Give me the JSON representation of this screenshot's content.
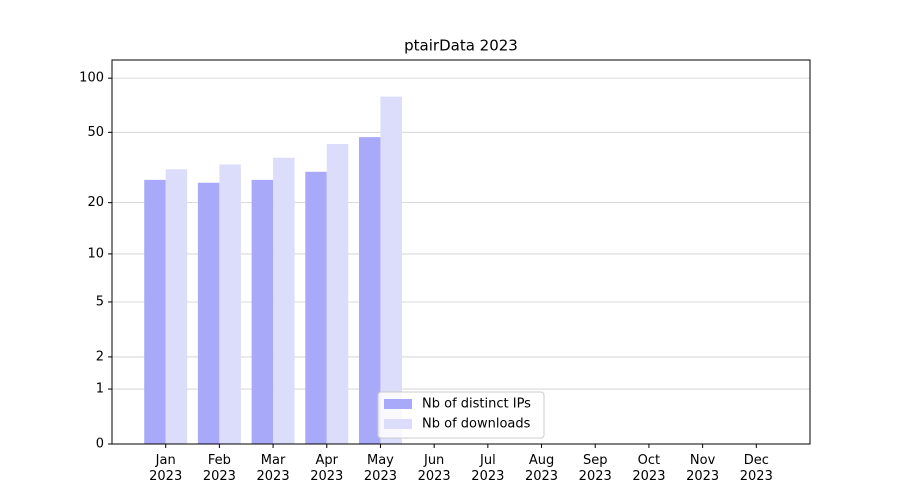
{
  "chart_data": {
    "type": "bar",
    "title": "ptairData 2023",
    "categories": [
      "Jan\n2023",
      "Feb\n2023",
      "Mar\n2023",
      "Apr\n2023",
      "May\n2023",
      "Jun\n2023",
      "Jul\n2023",
      "Aug\n2023",
      "Sep\n2023",
      "Oct\n2023",
      "Nov\n2023",
      "Dec\n2023"
    ],
    "series": [
      {
        "name": "Nb of distinct IPs",
        "color": "#a9a9f9",
        "values": [
          27,
          26,
          27,
          30,
          47,
          null,
          null,
          null,
          null,
          null,
          null,
          null
        ]
      },
      {
        "name": "Nb of downloads",
        "color": "#dcdcfb",
        "values": [
          31,
          33,
          36,
          43,
          79,
          null,
          null,
          null,
          null,
          null,
          null,
          null
        ]
      }
    ],
    "yscale": "log1p",
    "ylim": [
      0,
      126
    ],
    "yticks": [
      0,
      1,
      2,
      5,
      10,
      20,
      50,
      100
    ],
    "grid": true,
    "legend": "lower center"
  }
}
